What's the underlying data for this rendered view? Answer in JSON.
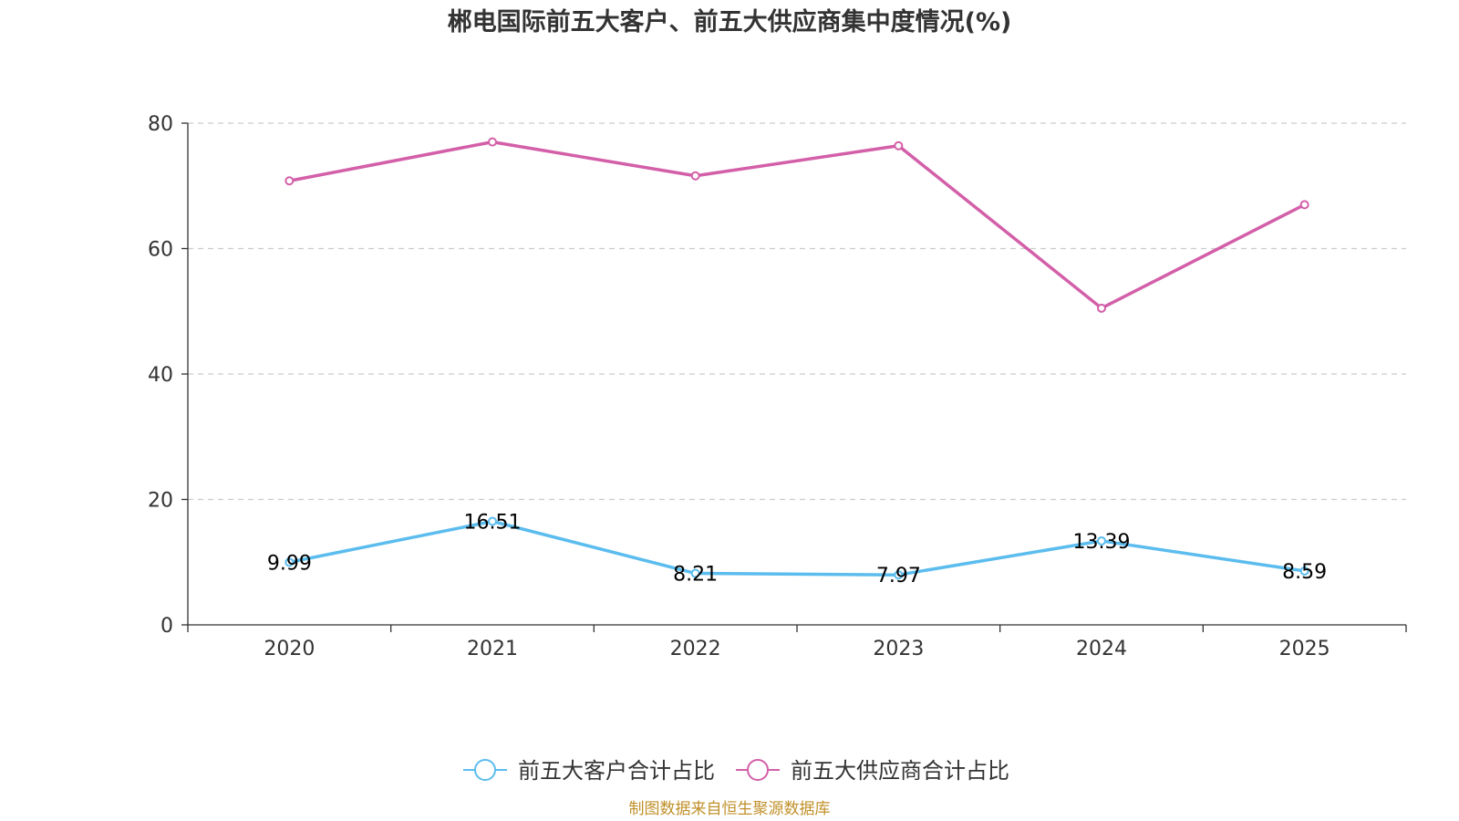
{
  "chart_data": {
    "type": "line",
    "title": "郴电国际前五大客户、前五大供应商集中度情况(%)",
    "categories": [
      "2020",
      "2021",
      "2022",
      "2023",
      "2024",
      "2025"
    ],
    "ylim": [
      0,
      80
    ],
    "yticks": [
      "0",
      "20",
      "40",
      "60",
      "80"
    ],
    "grid": true,
    "legend_position": "bottom",
    "series": [
      {
        "name": "前五大客户合计占比",
        "color": "#5bbcee",
        "values": [
          9.99,
          16.51,
          8.21,
          7.97,
          13.39,
          8.59
        ],
        "labels": [
          "9.99",
          "16.51",
          "8.21",
          "7.97",
          "13.39",
          "8.59"
        ]
      },
      {
        "name": "前五大供应商合计占比",
        "color": "#d35fa8",
        "values": [
          70.8,
          77.0,
          71.6,
          76.4,
          50.5,
          67.0
        ]
      }
    ],
    "source": "制图数据来自恒生聚源数据库"
  }
}
